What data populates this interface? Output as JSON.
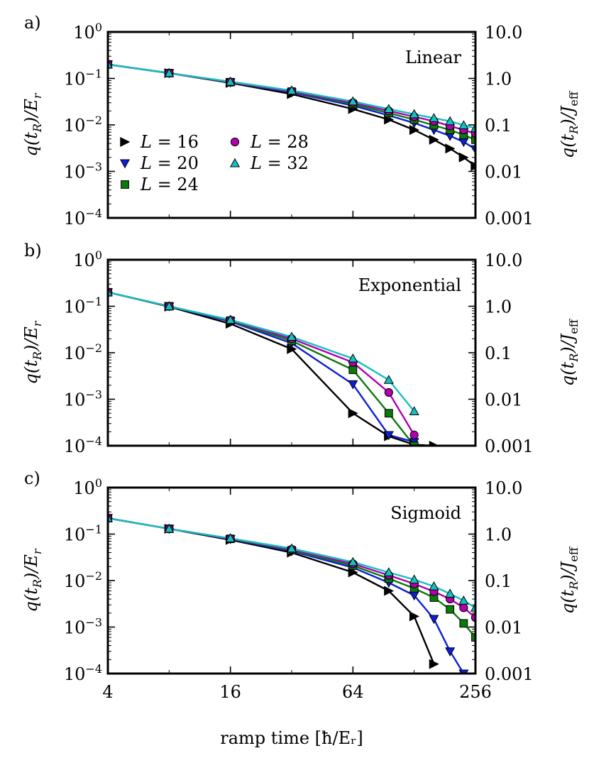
{
  "figure": {
    "xlabel": "ramp time [ħ/Eᵣ]",
    "left_ylabel": "q(t_R)/E_r",
    "right_ylabel": "q(t_R)/J_eff"
  },
  "colors": {
    "L16": "#000000",
    "L20": "#0b1fd6",
    "L24": "#0a7a0a",
    "L28": "#b000b0",
    "L32": "#17bfbf"
  },
  "chart_data": [
    {
      "type": "line",
      "panel_label": "a)",
      "title": "Linear",
      "xscale": "log2",
      "yscale": "log10",
      "xlim": [
        4,
        256
      ],
      "ylim": [
        0.0001,
        1
      ],
      "x_ticks": [
        "4",
        "16",
        "64",
        "256"
      ],
      "y_ticks_left": [
        "10^0",
        "10^-1",
        "10^-2",
        "10^-3",
        "10^-4"
      ],
      "y_ticks_right": [
        "10.0",
        "1.0",
        "0.1",
        "0.01",
        "0.001"
      ],
      "legend_position": "lower-left",
      "series": [
        {
          "name": "L = 16",
          "marker": "triangle-right",
          "color": "#000000",
          "x": [
            4,
            8,
            16,
            32,
            64,
            96,
            128,
            160,
            192,
            224,
            256
          ],
          "y": [
            0.2,
            0.13,
            0.08,
            0.046,
            0.022,
            0.013,
            0.0078,
            0.0048,
            0.0031,
            0.002,
            0.0013
          ]
        },
        {
          "name": "L = 20",
          "marker": "triangle-down",
          "color": "#0b1fd6",
          "x": [
            4,
            8,
            16,
            32,
            64,
            96,
            128,
            160,
            192,
            224,
            256
          ],
          "y": [
            0.2,
            0.13,
            0.082,
            0.05,
            0.026,
            0.016,
            0.011,
            0.0078,
            0.0058,
            0.0043,
            0.003
          ]
        },
        {
          "name": "L = 24",
          "marker": "square",
          "color": "#0a7a0a",
          "x": [
            4,
            8,
            16,
            32,
            64,
            96,
            128,
            160,
            192,
            224,
            256
          ],
          "y": [
            0.2,
            0.13,
            0.083,
            0.052,
            0.028,
            0.018,
            0.013,
            0.0098,
            0.0078,
            0.0061,
            0.0048
          ]
        },
        {
          "name": "L = 28",
          "marker": "circle",
          "color": "#b000b0",
          "x": [
            4,
            8,
            16,
            32,
            64,
            96,
            128,
            160,
            192,
            224,
            256
          ],
          "y": [
            0.2,
            0.13,
            0.084,
            0.053,
            0.03,
            0.02,
            0.015,
            0.012,
            0.0095,
            0.0078,
            0.0065
          ]
        },
        {
          "name": "L = 32",
          "marker": "triangle-up",
          "color": "#17bfbf",
          "x": [
            4,
            8,
            16,
            32,
            64,
            96,
            128,
            160,
            192,
            224,
            256
          ],
          "y": [
            0.2,
            0.13,
            0.085,
            0.055,
            0.032,
            0.022,
            0.017,
            0.014,
            0.012,
            0.0098,
            0.0085
          ]
        }
      ]
    },
    {
      "type": "line",
      "panel_label": "b)",
      "title": "Exponential",
      "xscale": "log2",
      "yscale": "log10",
      "xlim": [
        4,
        256
      ],
      "ylim": [
        0.0001,
        1
      ],
      "x_ticks": [
        "4",
        "16",
        "64",
        "256"
      ],
      "y_ticks_left": [
        "10^0",
        "10^-1",
        "10^-2",
        "10^-3",
        "10^-4"
      ],
      "y_ticks_right": [
        "10.0",
        "1.0",
        "0.1",
        "0.01",
        "0.001"
      ],
      "series": [
        {
          "name": "L = 16",
          "marker": "triangle-right",
          "color": "#000000",
          "x": [
            4,
            8,
            16,
            32,
            64,
            96,
            128,
            160
          ],
          "y": [
            0.2,
            0.098,
            0.042,
            0.012,
            0.0005,
            0.00016,
            0.000105,
            0.0001
          ]
        },
        {
          "name": "L = 20",
          "marker": "triangle-down",
          "color": "#0b1fd6",
          "x": [
            4,
            8,
            16,
            32,
            64,
            96,
            128
          ],
          "y": [
            0.2,
            0.1,
            0.047,
            0.016,
            0.0021,
            0.00017,
            0.00012
          ]
        },
        {
          "name": "L = 24",
          "marker": "square",
          "color": "#0a7a0a",
          "x": [
            4,
            8,
            16,
            32,
            64,
            96,
            128
          ],
          "y": [
            0.2,
            0.1,
            0.049,
            0.018,
            0.0043,
            0.0005,
            0.0001
          ]
        },
        {
          "name": "L = 28",
          "marker": "circle",
          "color": "#b000b0",
          "x": [
            4,
            8,
            16,
            32,
            64,
            96,
            128
          ],
          "y": [
            0.2,
            0.1,
            0.05,
            0.02,
            0.0062,
            0.0014,
            0.00017
          ]
        },
        {
          "name": "L = 32",
          "marker": "triangle-up",
          "color": "#17bfbf",
          "x": [
            4,
            8,
            16,
            32,
            64,
            96,
            128
          ],
          "y": [
            0.2,
            0.1,
            0.051,
            0.022,
            0.0075,
            0.0026,
            0.00055
          ]
        }
      ]
    },
    {
      "type": "line",
      "panel_label": "c)",
      "title": "Sigmoid",
      "xscale": "log2",
      "yscale": "log10",
      "xlim": [
        4,
        256
      ],
      "ylim": [
        0.0001,
        1
      ],
      "x_ticks": [
        "4",
        "16",
        "64",
        "256"
      ],
      "y_ticks_left": [
        "10^0",
        "10^-1",
        "10^-2",
        "10^-3",
        "10^-4"
      ],
      "y_ticks_right": [
        "10.0",
        "1.0",
        "0.1",
        "0.01",
        "0.001"
      ],
      "series": [
        {
          "name": "L = 16",
          "marker": "triangle-right",
          "color": "#000000",
          "x": [
            4,
            8,
            16,
            32,
            64,
            96,
            128,
            160
          ],
          "y": [
            0.22,
            0.13,
            0.075,
            0.04,
            0.015,
            0.006,
            0.0017,
            0.00016
          ]
        },
        {
          "name": "L = 20",
          "marker": "triangle-down",
          "color": "#0b1fd6",
          "x": [
            4,
            8,
            16,
            32,
            64,
            96,
            128,
            160,
            192,
            224
          ],
          "y": [
            0.22,
            0.13,
            0.078,
            0.043,
            0.019,
            0.009,
            0.0048,
            0.0015,
            0.0003,
            0.0001
          ]
        },
        {
          "name": "L = 24",
          "marker": "square",
          "color": "#0a7a0a",
          "x": [
            4,
            8,
            16,
            32,
            64,
            96,
            128,
            160,
            192,
            224,
            256
          ],
          "y": [
            0.22,
            0.13,
            0.079,
            0.045,
            0.021,
            0.011,
            0.0068,
            0.0043,
            0.0024,
            0.0012,
            0.0006
          ]
        },
        {
          "name": "L = 28",
          "marker": "circle",
          "color": "#b000b0",
          "x": [
            4,
            8,
            16,
            32,
            64,
            96,
            128,
            160,
            192,
            224,
            256
          ],
          "y": [
            0.22,
            0.13,
            0.08,
            0.047,
            0.023,
            0.013,
            0.0085,
            0.0058,
            0.004,
            0.0026,
            0.0016
          ]
        },
        {
          "name": "L = 32",
          "marker": "triangle-up",
          "color": "#17bfbf",
          "x": [
            4,
            8,
            16,
            32,
            64,
            96,
            128,
            160,
            192,
            224,
            256
          ],
          "y": [
            0.22,
            0.13,
            0.081,
            0.049,
            0.025,
            0.015,
            0.0105,
            0.0075,
            0.0052,
            0.0037,
            0.0026
          ]
        }
      ]
    }
  ]
}
